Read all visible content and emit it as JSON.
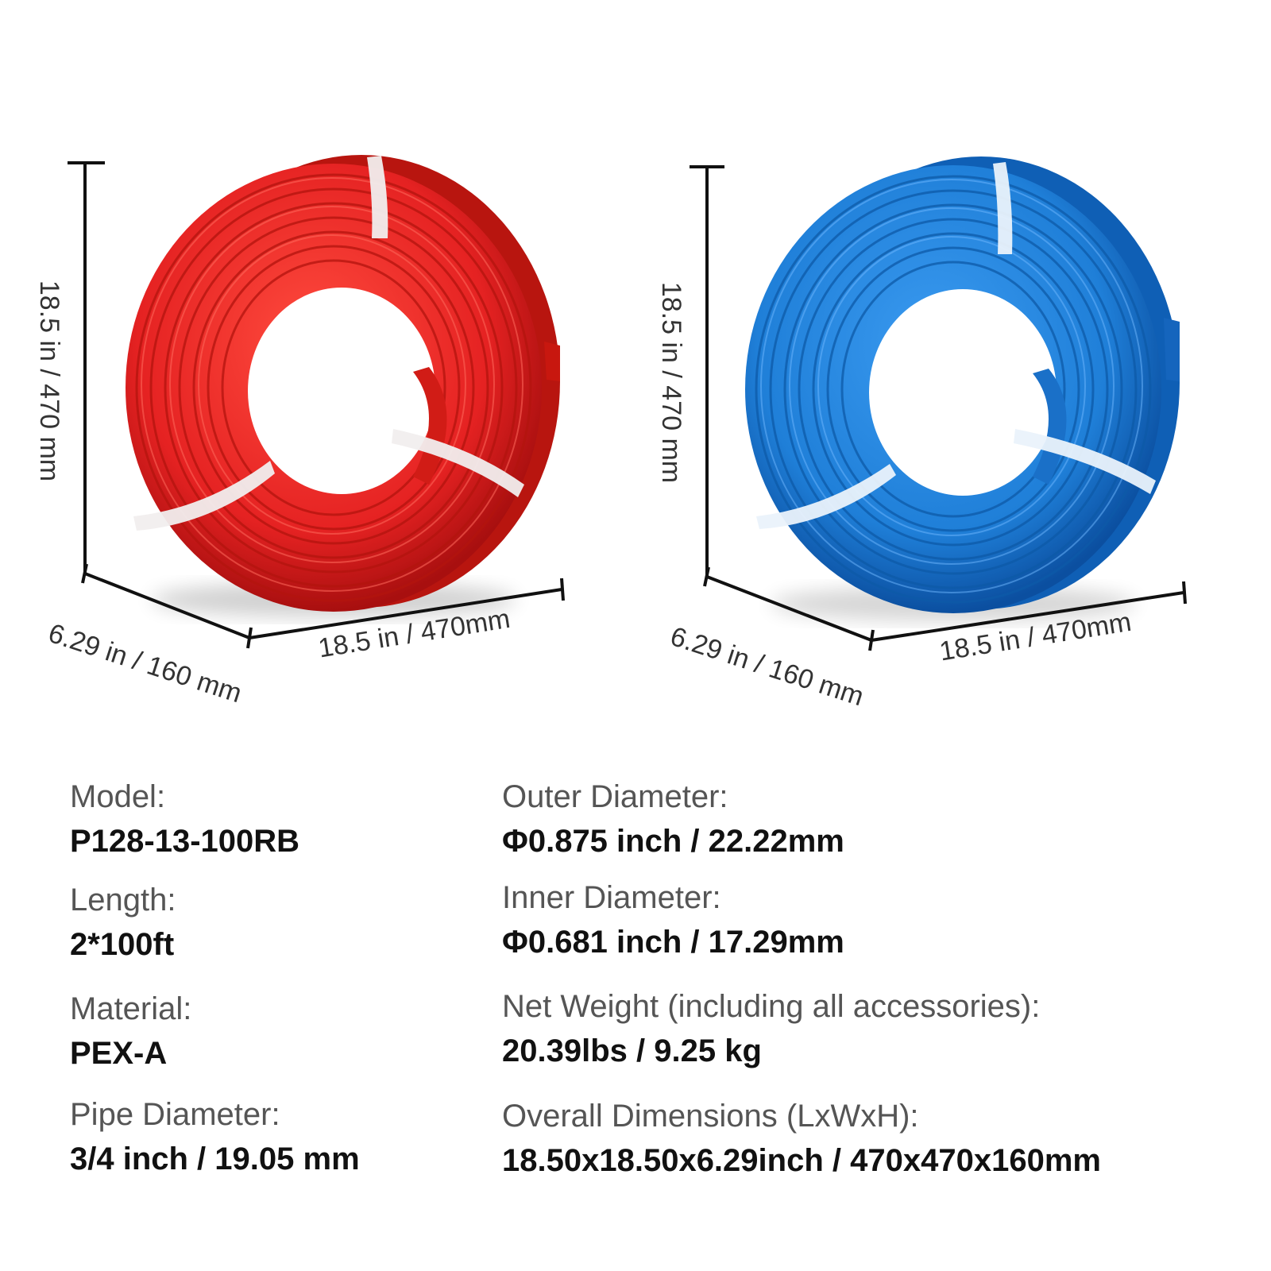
{
  "colors": {
    "red_coil": "#e52222",
    "red_coil_dark": "#a80f0f",
    "blue_coil": "#1f7fd8",
    "blue_coil_dark": "#0b4fa0",
    "strap": "#f1eeee",
    "dimension_line": "#111111",
    "label_text": "#555555",
    "value_text": "#111111"
  },
  "red_coil": {
    "height_label": "18.5 in / 470 mm",
    "depth_label": "6.29 in / 160 mm",
    "width_label": "18.5 in / 470mm"
  },
  "blue_coil": {
    "height_label": "18.5 in / 470 mm",
    "depth_label": "6.29 in / 160 mm",
    "width_label": "18.5 in / 470mm"
  },
  "specs": {
    "model": {
      "label": "Model:",
      "value": "P128-13-100RB"
    },
    "length": {
      "label": "Length:",
      "value": "2*100ft"
    },
    "material": {
      "label": "Material:",
      "value": "PEX-A"
    },
    "pipe_diameter": {
      "label": "Pipe Diameter:",
      "value": "3/4 inch / 19.05 mm"
    },
    "outer_diameter": {
      "label": "Outer Diameter:",
      "value": "Φ0.875 inch / 22.22mm"
    },
    "inner_diameter": {
      "label": "Inner Diameter:",
      "value": "Φ0.681 inch / 17.29mm"
    },
    "net_weight": {
      "label": "Net Weight (including all accessories):",
      "value": "20.39lbs / 9.25  kg"
    },
    "overall_dimensions": {
      "label": "Overall Dimensions (LxWxH):",
      "value": "18.50x18.50x6.29inch / 470x470x160mm"
    }
  }
}
